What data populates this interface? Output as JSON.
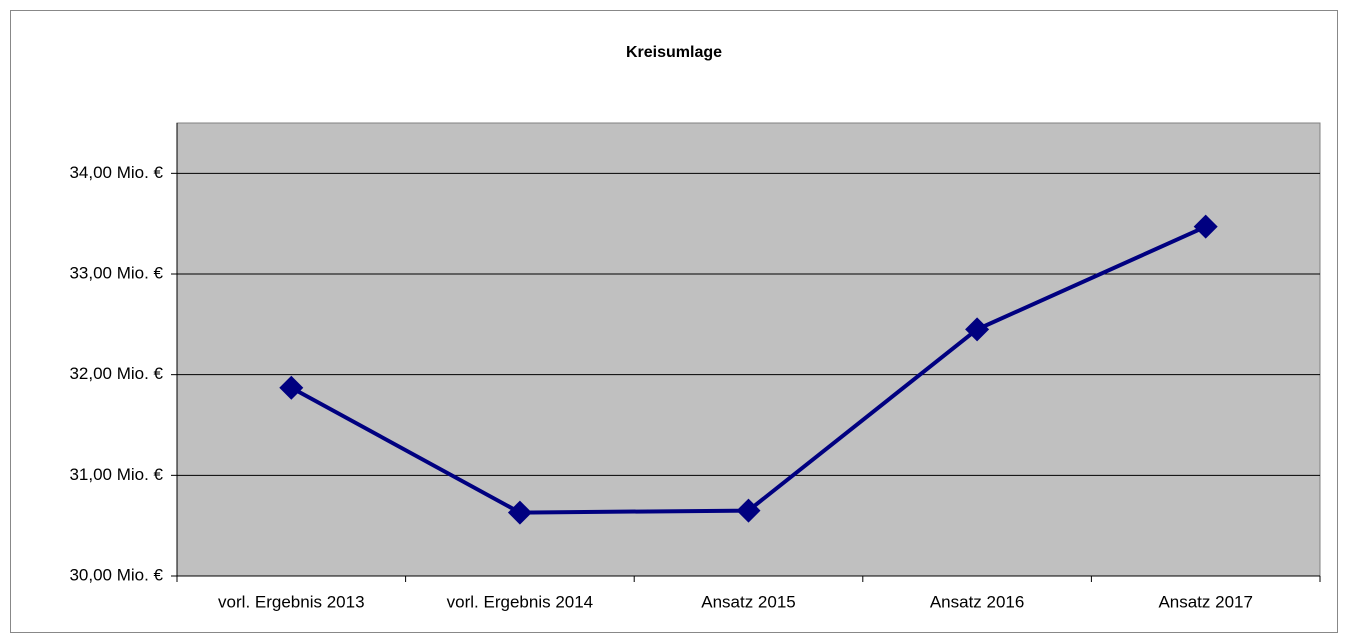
{
  "chart_data": {
    "type": "line",
    "title": "Kreisumlage",
    "categories": [
      "vorl. Ergebnis 2013",
      "vorl. Ergebnis 2014",
      "Ansatz 2015",
      "Ansatz 2016",
      "Ansatz 2017"
    ],
    "values": [
      31.87,
      30.63,
      30.65,
      32.45,
      33.47
    ],
    "color": "#000080",
    "ylim": [
      30,
      34.5
    ],
    "yticks": [
      {
        "value": 30,
        "label": "30,00 Mio. €"
      },
      {
        "value": 31,
        "label": "31,00 Mio. €"
      },
      {
        "value": 32,
        "label": "32,00 Mio. €"
      },
      {
        "value": 33,
        "label": "33,00 Mio. €"
      },
      {
        "value": 34,
        "label": "34,00 Mio. €"
      }
    ],
    "grid": true
  }
}
